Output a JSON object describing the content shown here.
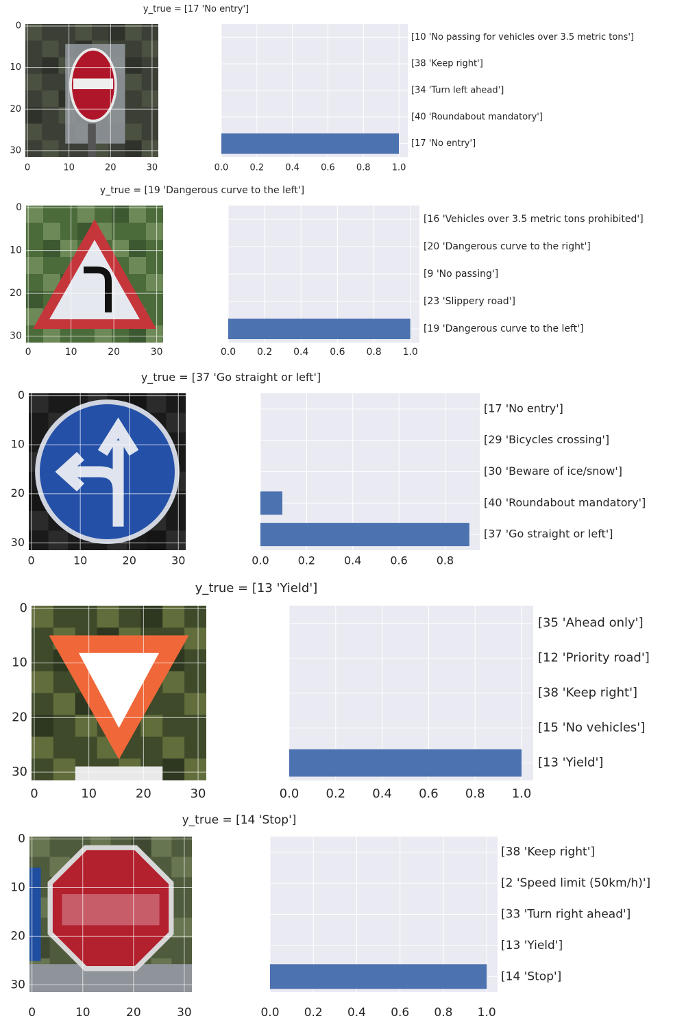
{
  "chart_data": [
    {
      "type": "bar",
      "orientation": "horizontal",
      "title": "y_true = [17 'No entry']",
      "image": {
        "kind": "thumbnail",
        "depicts": "no-entry-sign",
        "xticks": [
          "0",
          "10",
          "20",
          "30"
        ],
        "yticks": [
          "0",
          "10",
          "20",
          "30"
        ]
      },
      "categories": [
        "[17 'No entry']",
        "[40 'Roundabout mandatory']",
        "[34 'Turn left ahead']",
        "[38 'Keep right']",
        "[10 'No passing for vehicles over 3.5 metric tons']"
      ],
      "values": [
        1.0,
        0.0,
        0.0,
        0.0,
        0.0
      ],
      "xticks": [
        "0.0",
        "0.2",
        "0.4",
        "0.6",
        "0.8",
        "1.0"
      ],
      "xlim": [
        0,
        1.05
      ],
      "bar_color": "#4c72b0",
      "grid": true
    },
    {
      "type": "bar",
      "orientation": "horizontal",
      "title": "y_true = [19 'Dangerous curve to the left']",
      "image": {
        "kind": "thumbnail",
        "depicts": "dangerous-curve-left-sign",
        "xticks": [
          "0",
          "10",
          "20",
          "30"
        ],
        "yticks": [
          "0",
          "10",
          "20",
          "30"
        ]
      },
      "categories": [
        "[19 'Dangerous curve to the left']",
        "[23 'Slippery road']",
        "[9 'No passing']",
        "[20 'Dangerous curve to the right']",
        "[16 'Vehicles over 3.5 metric tons prohibited']"
      ],
      "values": [
        1.0,
        0.0,
        0.0,
        0.0,
        0.0
      ],
      "xticks": [
        "0.0",
        "0.2",
        "0.4",
        "0.6",
        "0.8",
        "1.0"
      ],
      "xlim": [
        0,
        1.05
      ],
      "bar_color": "#4c72b0",
      "grid": true
    },
    {
      "type": "bar",
      "orientation": "horizontal",
      "title": "y_true = [37 'Go straight or left']",
      "image": {
        "kind": "thumbnail",
        "depicts": "go-straight-or-left-sign",
        "xticks": [
          "0",
          "10",
          "20",
          "30"
        ],
        "yticks": [
          "0",
          "10",
          "20",
          "30"
        ]
      },
      "categories": [
        "[37 'Go straight or left']",
        "[40 'Roundabout mandatory']",
        "[30 'Beware of ice/snow']",
        "[29 'Bicycles crossing']",
        "[17 'No entry']"
      ],
      "values": [
        0.905,
        0.095,
        0.0,
        0.0,
        0.0
      ],
      "xticks": [
        "0.0",
        "0.2",
        "0.4",
        "0.6",
        "0.8"
      ],
      "xlim": [
        0,
        0.95
      ],
      "bar_color": "#4c72b0",
      "grid": true
    },
    {
      "type": "bar",
      "orientation": "horizontal",
      "title": "y_true = [13 'Yield']",
      "image": {
        "kind": "thumbnail",
        "depicts": "yield-sign",
        "xticks": [
          "0",
          "10",
          "20",
          "30"
        ],
        "yticks": [
          "0",
          "10",
          "20",
          "30"
        ]
      },
      "categories": [
        "[13 'Yield']",
        "[15 'No vehicles']",
        "[38 'Keep right']",
        "[12 'Priority road']",
        "[35 'Ahead only']"
      ],
      "values": [
        1.0,
        0.0,
        0.0,
        0.0,
        0.0
      ],
      "xticks": [
        "0.0",
        "0.2",
        "0.4",
        "0.6",
        "0.8",
        "1.0"
      ],
      "xlim": [
        0,
        1.05
      ],
      "bar_color": "#4c72b0",
      "grid": true
    },
    {
      "type": "bar",
      "orientation": "horizontal",
      "title": "y_true = [14 'Stop']",
      "image": {
        "kind": "thumbnail",
        "depicts": "stop-sign",
        "xticks": [
          "0",
          "10",
          "20",
          "30"
        ],
        "yticks": [
          "0",
          "10",
          "20",
          "30"
        ]
      },
      "categories": [
        "[14 'Stop']",
        "[13 'Yield']",
        "[33 'Turn right ahead']",
        "[2 'Speed limit (50km/h)']",
        "[38 'Keep right']"
      ],
      "values": [
        1.0,
        0.0,
        0.0,
        0.0,
        0.0
      ],
      "xticks": [
        "0.0",
        "0.2",
        "0.4",
        "0.6",
        "0.8",
        "1.0"
      ],
      "xlim": [
        0,
        1.05
      ],
      "bar_color": "#4c72b0",
      "grid": true
    }
  ]
}
